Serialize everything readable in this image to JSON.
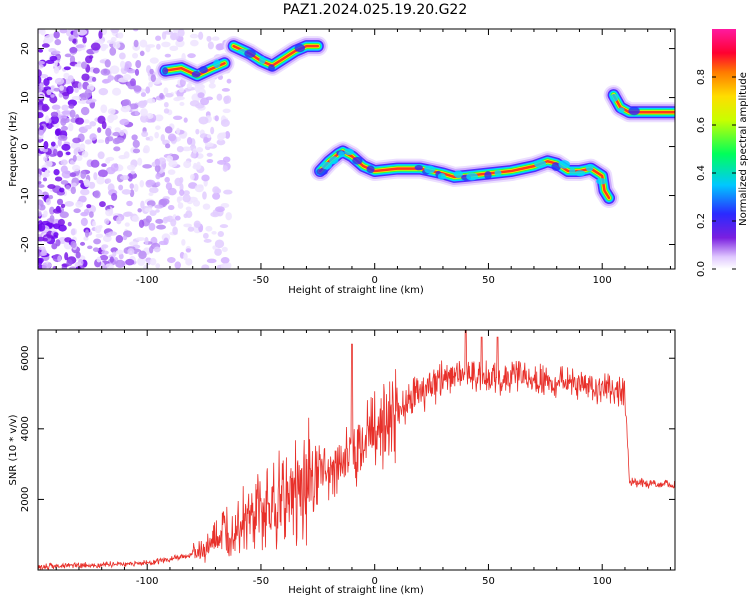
{
  "title": "PAZ1.2024.025.19.20.G22",
  "chart_data": [
    {
      "type": "heatmap",
      "xlabel": "Height of straight line (km)",
      "ylabel": "Frequency (Hz)",
      "xlim": [
        -148,
        132
      ],
      "ylim": [
        -25,
        24
      ],
      "xticks": [
        -100,
        -50,
        0,
        50,
        100
      ],
      "yticks": [
        -20,
        -10,
        0,
        10,
        20
      ],
      "colorbar": {
        "label": "Normalized spectral amplitude",
        "range": [
          0,
          1
        ],
        "ticks": [
          0.0,
          0.2,
          0.4,
          0.6,
          0.8
        ],
        "colormap": [
          "#ffffff",
          "#e8d8ff",
          "#8a2be2",
          "#3333ff",
          "#00bfff",
          "#00ff66",
          "#ffff00",
          "#ff8800",
          "#ff0033",
          "#ff1aa0"
        ]
      },
      "trace_segments": [
        {
          "x": [
            -92,
            -85,
            -78,
            -72,
            -66
          ],
          "y": [
            15.5,
            16,
            14.5,
            15.8,
            17
          ]
        },
        {
          "x": [
            -62,
            -55,
            -50,
            -45,
            -40,
            -35,
            -30,
            -25
          ],
          "y": [
            20.5,
            19,
            17.5,
            16.5,
            18,
            19.5,
            20.5,
            20.5
          ]
        },
        {
          "x": [
            -24,
            -20,
            -16,
            -14,
            -10,
            -5,
            0,
            10,
            20,
            25,
            30,
            35,
            40,
            50,
            60,
            70,
            76,
            80,
            85,
            90,
            95,
            100,
            101,
            103
          ],
          "y": [
            -5,
            -3,
            -1.5,
            -1,
            -2,
            -4,
            -5,
            -4.5,
            -4.5,
            -5,
            -5.5,
            -6.2,
            -6,
            -5.5,
            -5,
            -4,
            -3,
            -3.5,
            -5,
            -5,
            -4.5,
            -6,
            -9,
            -10.5
          ]
        },
        {
          "x": [
            105,
            108,
            112,
            120,
            128,
            132
          ],
          "y": [
            10.5,
            8,
            7,
            7,
            7,
            7
          ]
        }
      ],
      "noise_region": {
        "x": [
          -148,
          -70
        ],
        "y": [
          -25,
          24
        ]
      }
    },
    {
      "type": "line",
      "xlabel": "Height of straight line (km)",
      "ylabel": "SNR (10 * v/v)",
      "xlim": [
        -148,
        132
      ],
      "ylim": [
        0,
        6800
      ],
      "xticks": [
        -100,
        -50,
        0,
        50,
        100
      ],
      "yticks": [
        2000,
        4000,
        6000
      ],
      "color": "#e8302a",
      "envelope": {
        "x": [
          -148,
          -120,
          -100,
          -90,
          -80,
          -75,
          -70,
          -65,
          -60,
          -55,
          -50,
          -45,
          -40,
          -35,
          -30,
          -25,
          -20,
          -15,
          -10,
          -5,
          0,
          5,
          10,
          15,
          20,
          25,
          30,
          35,
          40,
          45,
          50,
          55,
          60,
          65,
          70,
          75,
          80,
          85,
          90,
          95,
          100,
          105,
          110,
          111,
          112,
          120,
          132
        ],
        "y": [
          100,
          150,
          200,
          300,
          450,
          550,
          800,
          1100,
          1300,
          1450,
          1600,
          1800,
          2050,
          2250,
          2500,
          2700,
          2900,
          3050,
          3300,
          3600,
          3950,
          4200,
          4500,
          4800,
          5000,
          5200,
          5400,
          5550,
          5600,
          5500,
          5450,
          5400,
          5450,
          5500,
          5400,
          5350,
          5300,
          5300,
          5250,
          5200,
          5150,
          5100,
          5100,
          3800,
          2500,
          2450,
          2400
        ]
      },
      "spikes": [
        {
          "x": -10,
          "y": 6400
        },
        {
          "x": 40,
          "y": 6800
        },
        {
          "x": 47,
          "y": 6600
        },
        {
          "x": 54,
          "y": 6600
        }
      ]
    }
  ]
}
